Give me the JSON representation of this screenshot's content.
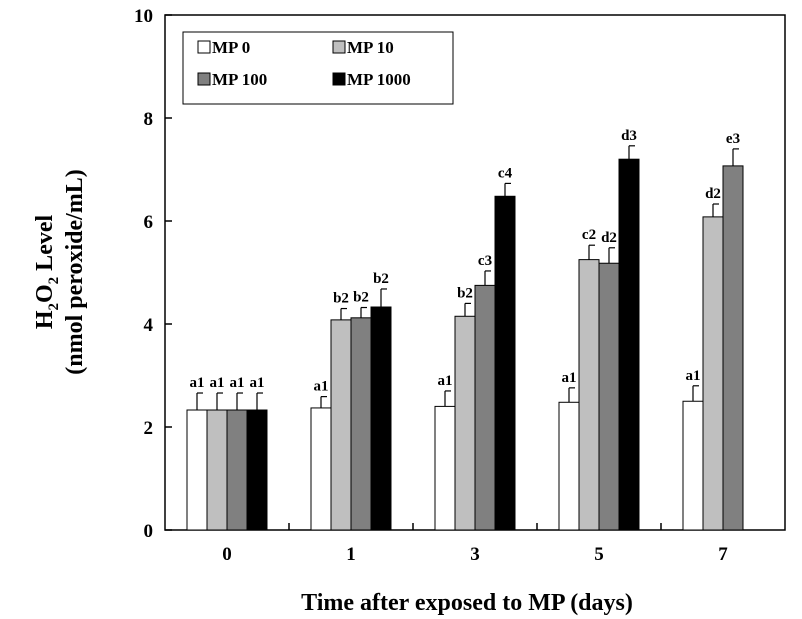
{
  "chart_data": {
    "type": "bar",
    "title": "",
    "xlabel": "Time after exposed to MP (days)",
    "ylabel_line1": "H",
    "ylabel_sub1": "2",
    "ylabel_mid": "O",
    "ylabel_sub2": "2",
    "ylabel_tail": " Level",
    "ylabel_line2": "(nmol peroxide/mL)",
    "ylim": [
      0,
      10
    ],
    "yticks": [
      "0",
      "2",
      "4",
      "6",
      "8",
      "10"
    ],
    "categories": [
      "0",
      "1",
      "3",
      "5",
      "7"
    ],
    "series": [
      {
        "name": "MP 0",
        "color": "#ffffff",
        "values": [
          2.33,
          2.37,
          2.4,
          2.48,
          2.5
        ],
        "errors": [
          0.33,
          0.22,
          0.3,
          0.28,
          0.3
        ],
        "labels": [
          "a1",
          "a1",
          "a1",
          "a1",
          "a1"
        ]
      },
      {
        "name": "MP 10",
        "color": "#bfbfbf",
        "values": [
          2.33,
          4.08,
          4.15,
          5.25,
          6.08
        ],
        "errors": [
          0.33,
          0.22,
          0.25,
          0.28,
          0.25
        ],
        "labels": [
          "a1",
          "b2",
          "b2",
          "c2",
          "d2"
        ]
      },
      {
        "name": "MP 100",
        "color": "#808080",
        "values": [
          2.33,
          4.12,
          4.75,
          5.18,
          7.07
        ],
        "errors": [
          0.33,
          0.2,
          0.28,
          0.3,
          0.33
        ],
        "labels": [
          "a1",
          "b2",
          "c3",
          "d2",
          "e3"
        ]
      },
      {
        "name": "MP 1000",
        "color": "#000000",
        "values": [
          2.33,
          4.33,
          6.48,
          7.2,
          null
        ],
        "errors": [
          0.33,
          0.35,
          0.25,
          0.26,
          null
        ],
        "labels": [
          "a1",
          "b2",
          "c4",
          "d3",
          ""
        ]
      }
    ],
    "legend_position": "top-left",
    "grid": false
  }
}
